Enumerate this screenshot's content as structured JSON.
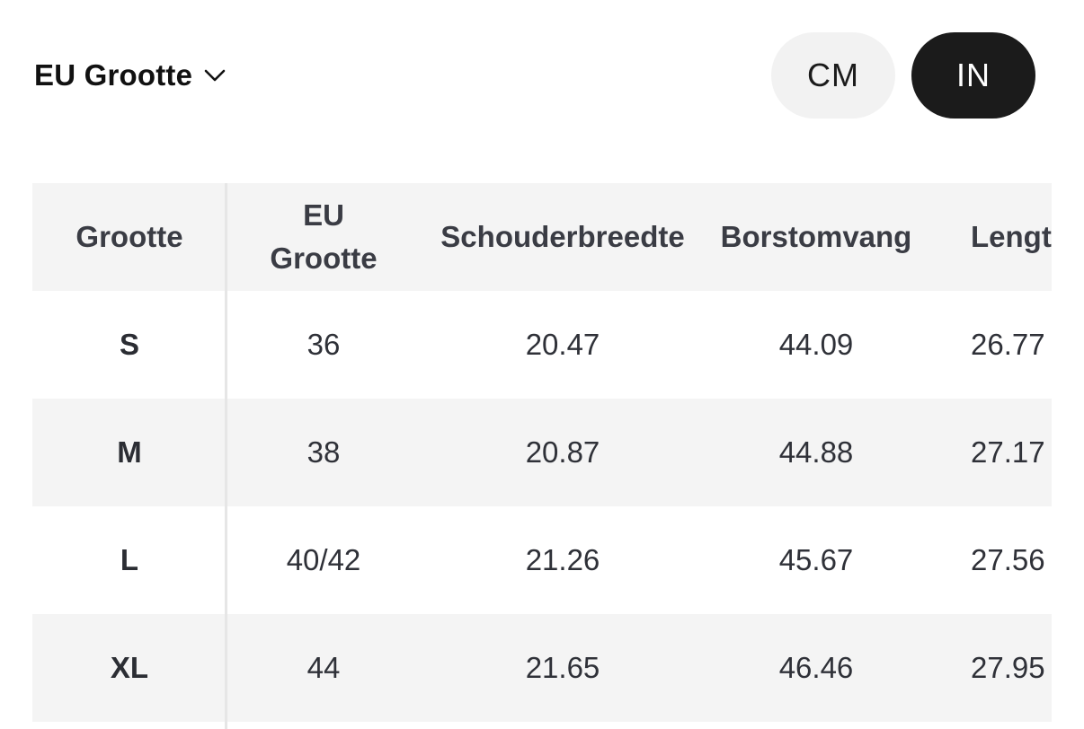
{
  "size_selector": {
    "label": "EU Grootte"
  },
  "units": {
    "cm_label": "CM",
    "in_label": "IN",
    "active": "IN"
  },
  "table": {
    "headers": [
      "Grootte",
      "EU Grootte",
      "Schouderbreedte",
      "Borstomvang",
      "Lengte"
    ],
    "rows": [
      [
        "S",
        "36",
        "20.47",
        "44.09",
        "26.77"
      ],
      [
        "M",
        "38",
        "20.87",
        "44.88",
        "27.17"
      ],
      [
        "L",
        "40/42",
        "21.26",
        "45.67",
        "27.56"
      ],
      [
        "XL",
        "44",
        "21.65",
        "46.46",
        "27.95"
      ]
    ]
  },
  "colors": {
    "active_unit_bg": "#1b1b1b",
    "inactive_unit_bg": "#f2f2f2",
    "shaded_row": "#f4f4f4"
  }
}
